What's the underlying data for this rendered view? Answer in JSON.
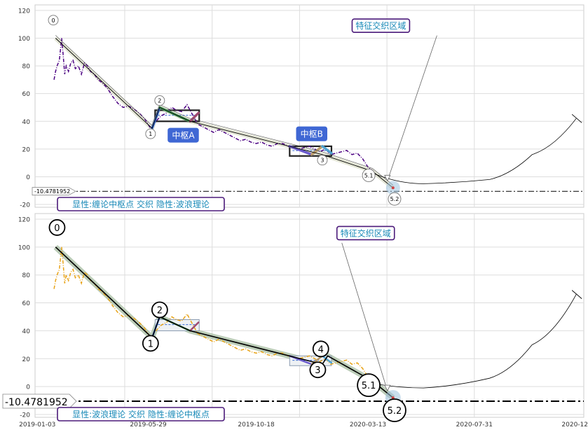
{
  "chart_data": [
    {
      "type": "line",
      "ylim": [
        -22,
        124
      ],
      "yticks": [
        -20,
        0,
        20,
        40,
        60,
        80,
        100,
        120
      ],
      "xlim": [
        "2018-12-31",
        "2020-12-22"
      ],
      "grid": true,
      "colors": {
        "price": "#4b0082",
        "trend": "#000000"
      },
      "price_series": {
        "x": [
          "2019-01-25",
          "2019-01-27",
          "2019-01-29",
          "2019-02-01",
          "2019-02-04",
          "2019-02-06",
          "2019-02-08",
          "2019-02-10",
          "2019-02-13",
          "2019-02-16",
          "2019-02-19",
          "2019-02-22",
          "2019-02-26",
          "2019-03-02",
          "2019-03-06",
          "2019-03-10",
          "2019-03-14",
          "2019-03-19",
          "2019-03-24",
          "2019-03-29",
          "2019-04-05",
          "2019-04-12",
          "2019-04-19",
          "2019-04-26",
          "2019-05-03",
          "2019-05-10",
          "2019-05-17",
          "2019-05-24",
          "2019-06-01",
          "2019-06-08",
          "2019-06-15",
          "2019-06-22",
          "2019-06-29",
          "2019-07-05",
          "2019-07-12",
          "2019-07-19",
          "2019-07-26",
          "2019-08-02",
          "2019-08-09",
          "2019-08-16",
          "2019-08-23",
          "2019-08-30",
          "2019-09-06",
          "2019-09-13",
          "2019-09-20",
          "2019-09-27",
          "2019-10-04",
          "2019-10-11",
          "2019-10-18",
          "2019-10-25",
          "2019-11-01",
          "2019-11-08",
          "2019-11-15",
          "2019-11-22",
          "2019-11-29",
          "2019-12-06",
          "2019-12-13",
          "2019-12-20",
          "2019-12-27",
          "2020-01-03",
          "2020-01-10",
          "2020-01-17",
          "2020-01-24",
          "2020-01-31",
          "2020-02-07",
          "2020-02-14",
          "2020-02-21",
          "2020-02-28",
          "2020-03-06",
          "2020-03-13",
          "2020-03-20"
        ],
        "y": [
          70,
          76,
          80,
          84,
          100,
          88,
          74,
          80,
          76,
          82,
          84,
          78,
          80,
          74,
          82,
          80,
          76,
          74,
          70,
          68,
          64,
          58,
          53,
          50,
          51,
          49,
          46,
          42,
          35,
          40,
          44,
          46,
          50,
          48,
          47,
          52,
          45,
          38,
          36,
          34,
          32,
          34,
          32,
          30,
          28,
          26,
          27,
          25,
          24,
          25,
          23,
          22,
          24,
          24,
          22,
          21,
          20,
          21,
          22,
          20,
          18,
          20,
          16,
          17,
          18,
          19,
          16,
          17,
          13,
          7,
          4
        ]
      },
      "trend_line": {
        "x": [
          "2019-01-27",
          "2019-06-03",
          "2019-06-13",
          "2019-07-23",
          "2020-01-13",
          "2020-03-19",
          "2020-04-15"
        ],
        "y": [
          100,
          35,
          50,
          40,
          16,
          4,
          -8
        ]
      },
      "zhongshu_boxes": [
        {
          "x": [
            "2019-06-07",
            "2019-08-04"
          ],
          "y": [
            40,
            48
          ]
        },
        {
          "x": [
            "2019-12-01",
            "2020-01-25"
          ],
          "y": [
            15,
            22
          ]
        }
      ],
      "pivot_labels": [
        {
          "text": "0",
          "x": "2019-01-24",
          "y": 113
        },
        {
          "text": "1",
          "x": "2019-06-01",
          "y": 31
        },
        {
          "text": "2",
          "x": "2019-06-13",
          "y": 55
        },
        {
          "text": "3",
          "x": "2020-01-13",
          "y": 12
        },
        {
          "text": "5.1",
          "x": "2020-03-14",
          "y": 1
        },
        {
          "text": "5.2",
          "x": "2020-04-17",
          "y": -16
        }
      ],
      "annotations": [
        {
          "text": "特征交织区域",
          "x": "2020-03-30",
          "y": 109
        },
        {
          "text": "中枢A",
          "x": "2019-07-14",
          "y": 30
        },
        {
          "text": "中枢B",
          "x": "2019-12-30",
          "y": 31
        },
        {
          "text": "显性:缠论中枢点 交织 隐性:波浪理论",
          "x": "2019-02-01",
          "y": -18
        }
      ],
      "hline": {
        "y": -10.4781952,
        "label": "-10.4781952"
      },
      "future_curve": {
        "x": [
          "2020-03-22",
          "2020-05-25",
          "2020-08-20",
          "2020-10-15",
          "2020-12-12"
        ],
        "y": [
          2,
          -5,
          -2,
          16,
          42
        ]
      }
    },
    {
      "type": "line",
      "ylim": [
        -22,
        124
      ],
      "yticks": [
        -20,
        0,
        20,
        40,
        60,
        80,
        100,
        120
      ],
      "xlim": [
        "2018-12-31",
        "2020-12-22"
      ],
      "x_tick_labels": [
        "2019-01-03",
        "2019-05-29",
        "2019-10-18",
        "2020-03-13",
        "2020-07-31",
        "2020-12-17"
      ],
      "grid": true,
      "colors": {
        "price": "#e8a317",
        "trend": "#000000"
      },
      "price_series": {
        "x": [
          "2019-01-25",
          "2019-01-27",
          "2019-01-29",
          "2019-02-01",
          "2019-02-04",
          "2019-02-06",
          "2019-02-08",
          "2019-02-10",
          "2019-02-13",
          "2019-02-16",
          "2019-02-19",
          "2019-02-22",
          "2019-02-26",
          "2019-03-02",
          "2019-03-06",
          "2019-03-10",
          "2019-03-14",
          "2019-03-19",
          "2019-03-24",
          "2019-03-29",
          "2019-04-05",
          "2019-04-12",
          "2019-04-19",
          "2019-04-26",
          "2019-05-03",
          "2019-05-10",
          "2019-05-17",
          "2019-05-24",
          "2019-06-01",
          "2019-06-08",
          "2019-06-15",
          "2019-06-22",
          "2019-06-29",
          "2019-07-05",
          "2019-07-12",
          "2019-07-19",
          "2019-07-26",
          "2019-08-02",
          "2019-08-09",
          "2019-08-16",
          "2019-08-23",
          "2019-08-30",
          "2019-09-06",
          "2019-09-13",
          "2019-09-20",
          "2019-09-27",
          "2019-10-04",
          "2019-10-11",
          "2019-10-18",
          "2019-10-25",
          "2019-11-01",
          "2019-11-08",
          "2019-11-15",
          "2019-11-22",
          "2019-11-29",
          "2019-12-06",
          "2019-12-13",
          "2019-12-20",
          "2019-12-27",
          "2020-01-03",
          "2020-01-10",
          "2020-01-17",
          "2020-01-24",
          "2020-01-31",
          "2020-02-07",
          "2020-02-14",
          "2020-02-21",
          "2020-02-28",
          "2020-03-06",
          "2020-03-13",
          "2020-03-20"
        ],
        "y": [
          70,
          76,
          80,
          84,
          100,
          88,
          74,
          80,
          76,
          82,
          84,
          78,
          80,
          74,
          82,
          80,
          76,
          74,
          70,
          68,
          64,
          58,
          53,
          50,
          51,
          49,
          46,
          42,
          35,
          40,
          44,
          46,
          50,
          48,
          47,
          52,
          45,
          38,
          36,
          34,
          32,
          34,
          32,
          30,
          28,
          26,
          27,
          25,
          24,
          25,
          23,
          22,
          24,
          24,
          22,
          21,
          20,
          21,
          22,
          20,
          18,
          20,
          16,
          17,
          18,
          19,
          16,
          17,
          13,
          7,
          4
        ]
      },
      "trend_line": {
        "x": [
          "2019-01-27",
          "2019-06-03",
          "2019-06-13",
          "2019-07-23",
          "2020-01-13",
          "2020-01-20",
          "2020-03-19",
          "2020-04-15"
        ],
        "y": [
          100,
          35,
          50,
          40,
          16,
          22,
          4,
          -8
        ]
      },
      "zhongshu_boxes": [
        {
          "x": [
            "2019-06-07",
            "2019-08-04"
          ],
          "y": [
            40,
            48
          ]
        },
        {
          "x": [
            "2019-12-01",
            "2020-01-25"
          ],
          "y": [
            15,
            22
          ]
        }
      ],
      "pivot_labels": [
        {
          "text": "0",
          "x": "2019-01-29",
          "y": 114
        },
        {
          "text": "1",
          "x": "2019-06-01",
          "y": 31
        },
        {
          "text": "2",
          "x": "2019-06-13",
          "y": 55
        },
        {
          "text": "3",
          "x": "2020-01-07",
          "y": 12
        },
        {
          "text": "4",
          "x": "2020-01-11",
          "y": 27
        },
        {
          "text": "5.1",
          "x": "2020-03-14",
          "y": 1
        },
        {
          "text": "5.2",
          "x": "2020-04-17",
          "y": -17
        }
      ],
      "annotations": [
        {
          "text": "特征交织区域",
          "x": "2020-03-10",
          "y": 110
        },
        {
          "text": "显性:波浪理论 交织 隐性:缠论中枢点",
          "x": "2019-02-01",
          "y": -18
        }
      ],
      "hline": {
        "y": -10.4781952,
        "label": "-10.4781952"
      },
      "future_curve": {
        "x": [
          "2020-03-22",
          "2020-05-25",
          "2020-08-20",
          "2020-10-15",
          "2020-12-12"
        ],
        "y": [
          2,
          -1,
          6,
          30,
          66
        ]
      }
    }
  ]
}
